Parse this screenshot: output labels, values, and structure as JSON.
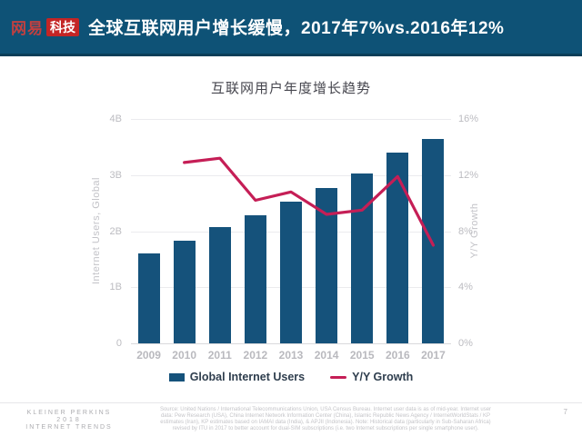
{
  "header": {
    "logo_brand": "网易",
    "logo_sub": "科技",
    "title": "全球互联网用户增长缓慢，2017年7%vs.2016年12%"
  },
  "chart_data": {
    "type": "bar",
    "title": "互联网用户年度增长趋势",
    "categories": [
      "2009",
      "2010",
      "2011",
      "2012",
      "2013",
      "2014",
      "2015",
      "2016",
      "2017"
    ],
    "series": [
      {
        "name": "Global Internet Users",
        "type": "bar",
        "axis": "left",
        "unit": "B",
        "color": "#15527b",
        "values": [
          1.61,
          1.83,
          2.07,
          2.28,
          2.52,
          2.77,
          3.03,
          3.4,
          3.65
        ]
      },
      {
        "name": "Y/Y Growth",
        "type": "line",
        "axis": "right",
        "unit": "%",
        "color": "#c51e56",
        "values": [
          null,
          12.9,
          13.2,
          10.2,
          10.8,
          9.2,
          9.5,
          11.9,
          7.0
        ]
      }
    ],
    "left_axis": {
      "label": "Internet Users, Global",
      "min": 0,
      "max": 4,
      "ticks": [
        "4B",
        "3B",
        "2B",
        "1B",
        "0"
      ]
    },
    "right_axis": {
      "label": "Y/Y Growth",
      "min": 0,
      "max": 16,
      "ticks": [
        "16%",
        "12%",
        "8%",
        "4%",
        "0%"
      ]
    },
    "grid": true,
    "legend_position": "bottom"
  },
  "footer": {
    "brand_line1": "KLEINER PERKINS",
    "brand_line2": "2018",
    "brand_line3": "INTERNET TRENDS",
    "source_lines": [
      "Source: United Nations / International Telecommunications Union, USA Census Bureau. Internet user data is as of mid-year. Internet user",
      "data: Pew Research (USA), China Internet Network Information Center (China), Islamic Republic News Agency / InternetWorldStats / KP",
      "estimates (Iran), KP estimates based on IAMAI data (India), & APJII (Indonesia). Note: Historical data (particularly in Sub-Saharan Africa)",
      "revised by ITU in 2017 to better account for dual-SIM subscriptions (i.e. two Internet subscriptions per single smartphone user)."
    ],
    "page_number": "7"
  }
}
